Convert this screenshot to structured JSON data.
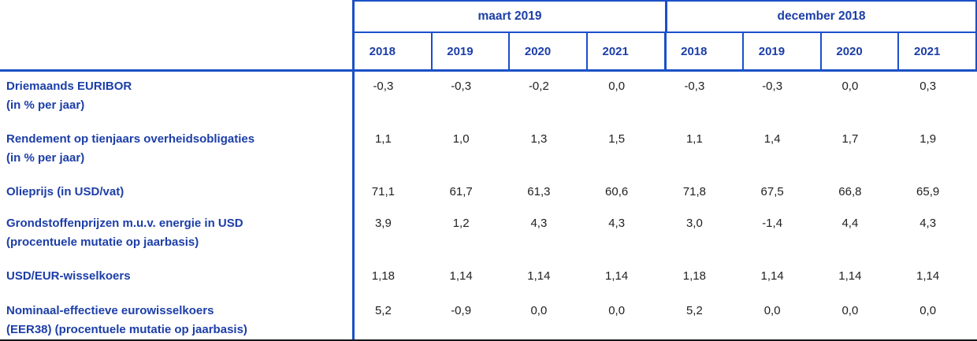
{
  "table": {
    "group_headers": [
      {
        "label": "maart 2019"
      },
      {
        "label": "december 2018"
      }
    ],
    "year_headers": [
      "2018",
      "2019",
      "2020",
      "2021",
      "2018",
      "2019",
      "2020",
      "2021"
    ],
    "rows": [
      {
        "label_line1": "Driemaands EURIBOR",
        "label_line2": "(in % per jaar)",
        "values": [
          "-0,3",
          "-0,3",
          "-0,2",
          "0,0",
          "-0,3",
          "-0,3",
          "0,0",
          "0,3"
        ]
      },
      {
        "label_line1": "Rendement op tienjaars overheidsobligaties",
        "label_line2": "(in % per jaar)",
        "values": [
          "1,1",
          "1,0",
          "1,3",
          "1,5",
          "1,1",
          "1,4",
          "1,7",
          "1,9"
        ]
      },
      {
        "label_line1": "Olieprijs (in USD/vat)",
        "label_line2": "",
        "values": [
          "71,1",
          "61,7",
          "61,3",
          "60,6",
          "71,8",
          "67,5",
          "66,8",
          "65,9"
        ]
      },
      {
        "label_line1": "Grondstoffenprijzen m.u.v. energie in USD",
        "label_line2": "(procentuele mutatie op jaarbasis)",
        "values": [
          "3,9",
          "1,2",
          "4,3",
          "4,3",
          "3,0",
          "-1,4",
          "4,4",
          "4,3"
        ]
      },
      {
        "label_line1": "USD/EUR-wisselkoers",
        "label_line2": "",
        "values": [
          "1,18",
          "1,14",
          "1,14",
          "1,14",
          "1,18",
          "1,14",
          "1,14",
          "1,14"
        ]
      },
      {
        "label_line1": "Nominaal-effectieve eurowisselkoers",
        "label_line2": "(EER38) (procentuele mutatie op jaarbasis)",
        "values": [
          "5,2",
          "-0,9",
          "0,0",
          "0,0",
          "5,2",
          "0,0",
          "0,0",
          "0,0"
        ]
      }
    ],
    "colors": {
      "header_text": "#1c3ea8",
      "label_text": "#1c3ea8",
      "value_text": "#1f1f1f",
      "line": "#1a50c8",
      "bottom_line": "#15161a"
    }
  }
}
